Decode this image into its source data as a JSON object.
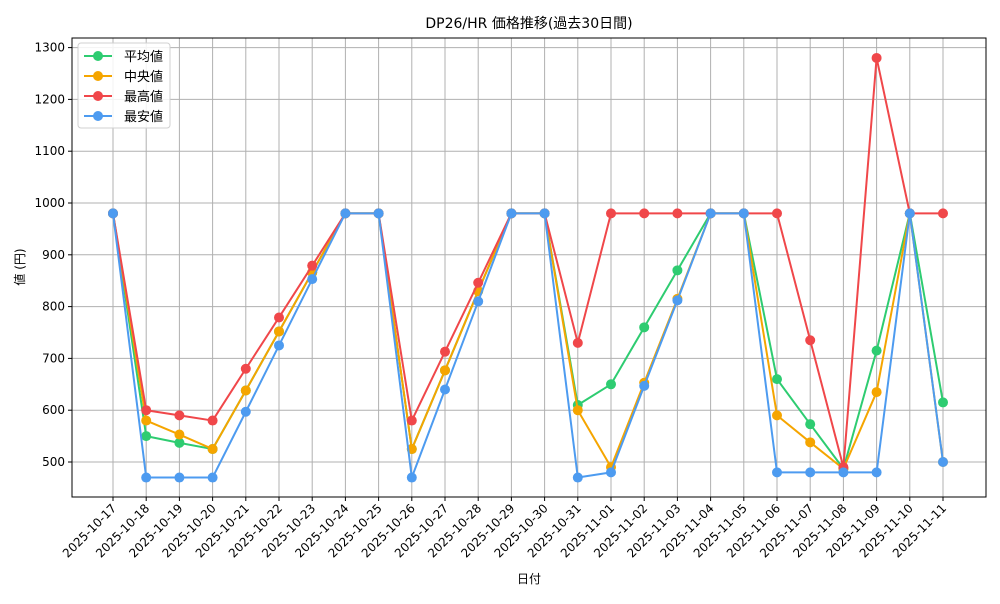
{
  "chart_data": {
    "type": "line",
    "title": "DP26/HR 価格推移(過去30日間)",
    "xlabel": "日付",
    "ylabel": "値 (円)",
    "ylim": [
      430,
      1320
    ],
    "yticks": [
      500,
      600,
      700,
      800,
      900,
      1000,
      1100,
      1200,
      1300
    ],
    "grid": true,
    "legend_position": "upper left",
    "categories": [
      "2025-10-17",
      "2025-10-18",
      "2025-10-19",
      "2025-10-20",
      "2025-10-21",
      "2025-10-22",
      "2025-10-23",
      "2025-10-24",
      "2025-10-25",
      "2025-10-26",
      "2025-10-27",
      "2025-10-28",
      "2025-10-29",
      "2025-10-30",
      "2025-10-31",
      "2025-11-01",
      "2025-11-02",
      "2025-11-03",
      "2025-11-04",
      "2025-11-05",
      "2025-11-06",
      "2025-11-07",
      "2025-11-08",
      "2025-11-09",
      "2025-11-10",
      "2025-11-11"
    ],
    "series": [
      {
        "name": "平均値",
        "color": "#2ecc71",
        "values": [
          980,
          550,
          537,
          525,
          638,
          752,
          866,
          980,
          980,
          525,
          677,
          830,
          980,
          980,
          610,
          650,
          760,
          870,
          980,
          980,
          660,
          573,
          487,
          715,
          980,
          615
        ]
      },
      {
        "name": "中央値",
        "color": "#f5a500",
        "values": [
          980,
          580,
          553,
          525,
          638,
          752,
          866,
          980,
          980,
          525,
          677,
          830,
          980,
          980,
          600,
          490,
          653,
          815,
          980,
          980,
          590,
          538,
          487,
          635,
          980,
          500
        ]
      },
      {
        "name": "最高値",
        "color": "#f0474a",
        "values": [
          980,
          600,
          590,
          580,
          680,
          779,
          879,
          980,
          980,
          580,
          713,
          846,
          980,
          980,
          730,
          980,
          980,
          980,
          980,
          980,
          980,
          735,
          490,
          1280,
          980,
          980
        ]
      },
      {
        "name": "最安値",
        "color": "#4d9bf0",
        "values": [
          980,
          470,
          470,
          470,
          597,
          725,
          853,
          980,
          980,
          470,
          640,
          810,
          980,
          980,
          470,
          480,
          647,
          812,
          980,
          980,
          480,
          480,
          480,
          480,
          980,
          500
        ]
      }
    ]
  }
}
